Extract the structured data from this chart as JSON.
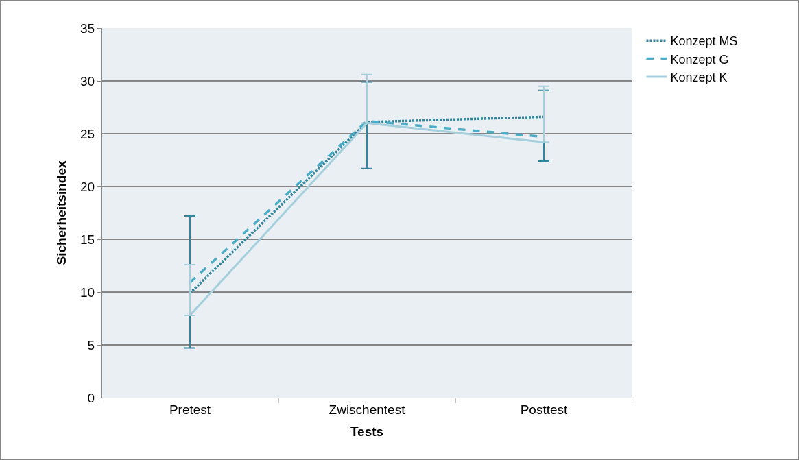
{
  "chart_data": {
    "type": "line",
    "xlabel": "Tests",
    "ylabel": "Sicherheitsindex",
    "categories": [
      "Pretest",
      "Zwischentest",
      "Posttest"
    ],
    "series": [
      {
        "name": "Konzept MS",
        "color": "#31859c",
        "line_style": "dotted",
        "values": [
          9.9,
          26.1,
          26.6
        ],
        "errors": [
          [
            4.7,
            17.2
          ],
          [
            21.7,
            29.9
          ],
          [
            22.4,
            29.1
          ]
        ]
      },
      {
        "name": "Konzept G",
        "color": "#4bacc6",
        "line_style": "dashed",
        "values": [
          10.9,
          26.2,
          24.7
        ]
      },
      {
        "name": "Konzept K",
        "color": "#a5cfdc",
        "line_style": "solid",
        "values": [
          7.8,
          26.0,
          24.2
        ],
        "errors": [
          [
            7.8,
            12.6
          ],
          [
            26.0,
            30.6
          ],
          [
            24.2,
            29.5
          ]
        ]
      }
    ],
    "ylim": [
      0,
      35
    ],
    "yticks": [
      0,
      5,
      10,
      15,
      20,
      25,
      30,
      35
    ],
    "grid": "y",
    "legend": "right",
    "marker": "none"
  }
}
